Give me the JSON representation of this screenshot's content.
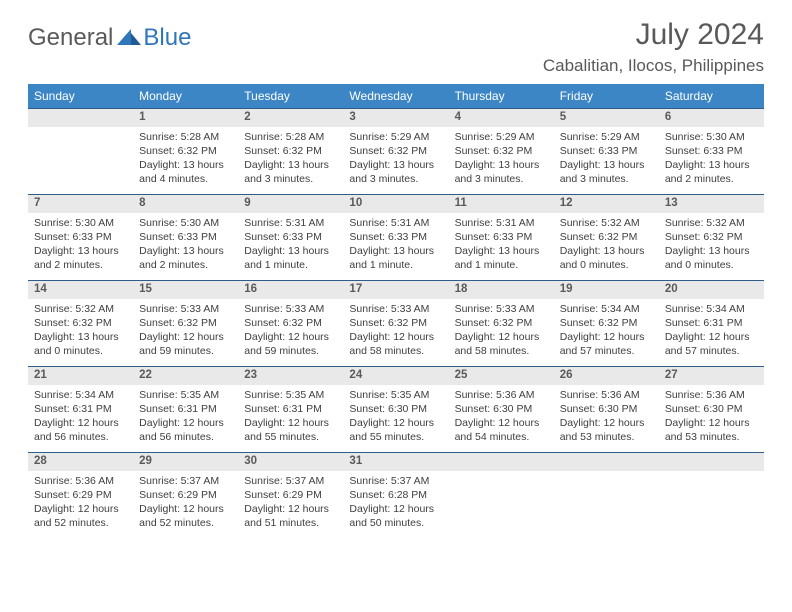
{
  "brand": {
    "word1": "General",
    "word2": "Blue"
  },
  "title": {
    "month": "July 2024",
    "location": "Cabalitian, Ilocos, Philippines"
  },
  "colors": {
    "header_bg": "#3d86c6",
    "daynum_bg": "#e9e9e9",
    "rule": "#2f5d8a",
    "text": "#3f3f3f",
    "muted": "#595959",
    "brand_blue": "#2f76ba"
  },
  "weekdays": [
    "Sunday",
    "Monday",
    "Tuesday",
    "Wednesday",
    "Thursday",
    "Friday",
    "Saturday"
  ],
  "weeks": [
    {
      "nums": [
        "",
        "1",
        "2",
        "3",
        "4",
        "5",
        "6"
      ],
      "cells": [
        null,
        {
          "sunrise": "Sunrise: 5:28 AM",
          "sunset": "Sunset: 6:32 PM",
          "daylight": "Daylight: 13 hours and 4 minutes."
        },
        {
          "sunrise": "Sunrise: 5:28 AM",
          "sunset": "Sunset: 6:32 PM",
          "daylight": "Daylight: 13 hours and 3 minutes."
        },
        {
          "sunrise": "Sunrise: 5:29 AM",
          "sunset": "Sunset: 6:32 PM",
          "daylight": "Daylight: 13 hours and 3 minutes."
        },
        {
          "sunrise": "Sunrise: 5:29 AM",
          "sunset": "Sunset: 6:32 PM",
          "daylight": "Daylight: 13 hours and 3 minutes."
        },
        {
          "sunrise": "Sunrise: 5:29 AM",
          "sunset": "Sunset: 6:33 PM",
          "daylight": "Daylight: 13 hours and 3 minutes."
        },
        {
          "sunrise": "Sunrise: 5:30 AM",
          "sunset": "Sunset: 6:33 PM",
          "daylight": "Daylight: 13 hours and 2 minutes."
        }
      ]
    },
    {
      "nums": [
        "7",
        "8",
        "9",
        "10",
        "11",
        "12",
        "13"
      ],
      "cells": [
        {
          "sunrise": "Sunrise: 5:30 AM",
          "sunset": "Sunset: 6:33 PM",
          "daylight": "Daylight: 13 hours and 2 minutes."
        },
        {
          "sunrise": "Sunrise: 5:30 AM",
          "sunset": "Sunset: 6:33 PM",
          "daylight": "Daylight: 13 hours and 2 minutes."
        },
        {
          "sunrise": "Sunrise: 5:31 AM",
          "sunset": "Sunset: 6:33 PM",
          "daylight": "Daylight: 13 hours and 1 minute."
        },
        {
          "sunrise": "Sunrise: 5:31 AM",
          "sunset": "Sunset: 6:33 PM",
          "daylight": "Daylight: 13 hours and 1 minute."
        },
        {
          "sunrise": "Sunrise: 5:31 AM",
          "sunset": "Sunset: 6:33 PM",
          "daylight": "Daylight: 13 hours and 1 minute."
        },
        {
          "sunrise": "Sunrise: 5:32 AM",
          "sunset": "Sunset: 6:32 PM",
          "daylight": "Daylight: 13 hours and 0 minutes."
        },
        {
          "sunrise": "Sunrise: 5:32 AM",
          "sunset": "Sunset: 6:32 PM",
          "daylight": "Daylight: 13 hours and 0 minutes."
        }
      ]
    },
    {
      "nums": [
        "14",
        "15",
        "16",
        "17",
        "18",
        "19",
        "20"
      ],
      "cells": [
        {
          "sunrise": "Sunrise: 5:32 AM",
          "sunset": "Sunset: 6:32 PM",
          "daylight": "Daylight: 13 hours and 0 minutes."
        },
        {
          "sunrise": "Sunrise: 5:33 AM",
          "sunset": "Sunset: 6:32 PM",
          "daylight": "Daylight: 12 hours and 59 minutes."
        },
        {
          "sunrise": "Sunrise: 5:33 AM",
          "sunset": "Sunset: 6:32 PM",
          "daylight": "Daylight: 12 hours and 59 minutes."
        },
        {
          "sunrise": "Sunrise: 5:33 AM",
          "sunset": "Sunset: 6:32 PM",
          "daylight": "Daylight: 12 hours and 58 minutes."
        },
        {
          "sunrise": "Sunrise: 5:33 AM",
          "sunset": "Sunset: 6:32 PM",
          "daylight": "Daylight: 12 hours and 58 minutes."
        },
        {
          "sunrise": "Sunrise: 5:34 AM",
          "sunset": "Sunset: 6:32 PM",
          "daylight": "Daylight: 12 hours and 57 minutes."
        },
        {
          "sunrise": "Sunrise: 5:34 AM",
          "sunset": "Sunset: 6:31 PM",
          "daylight": "Daylight: 12 hours and 57 minutes."
        }
      ]
    },
    {
      "nums": [
        "21",
        "22",
        "23",
        "24",
        "25",
        "26",
        "27"
      ],
      "cells": [
        {
          "sunrise": "Sunrise: 5:34 AM",
          "sunset": "Sunset: 6:31 PM",
          "daylight": "Daylight: 12 hours and 56 minutes."
        },
        {
          "sunrise": "Sunrise: 5:35 AM",
          "sunset": "Sunset: 6:31 PM",
          "daylight": "Daylight: 12 hours and 56 minutes."
        },
        {
          "sunrise": "Sunrise: 5:35 AM",
          "sunset": "Sunset: 6:31 PM",
          "daylight": "Daylight: 12 hours and 55 minutes."
        },
        {
          "sunrise": "Sunrise: 5:35 AM",
          "sunset": "Sunset: 6:30 PM",
          "daylight": "Daylight: 12 hours and 55 minutes."
        },
        {
          "sunrise": "Sunrise: 5:36 AM",
          "sunset": "Sunset: 6:30 PM",
          "daylight": "Daylight: 12 hours and 54 minutes."
        },
        {
          "sunrise": "Sunrise: 5:36 AM",
          "sunset": "Sunset: 6:30 PM",
          "daylight": "Daylight: 12 hours and 53 minutes."
        },
        {
          "sunrise": "Sunrise: 5:36 AM",
          "sunset": "Sunset: 6:30 PM",
          "daylight": "Daylight: 12 hours and 53 minutes."
        }
      ]
    },
    {
      "nums": [
        "28",
        "29",
        "30",
        "31",
        "",
        "",
        ""
      ],
      "cells": [
        {
          "sunrise": "Sunrise: 5:36 AM",
          "sunset": "Sunset: 6:29 PM",
          "daylight": "Daylight: 12 hours and 52 minutes."
        },
        {
          "sunrise": "Sunrise: 5:37 AM",
          "sunset": "Sunset: 6:29 PM",
          "daylight": "Daylight: 12 hours and 52 minutes."
        },
        {
          "sunrise": "Sunrise: 5:37 AM",
          "sunset": "Sunset: 6:29 PM",
          "daylight": "Daylight: 12 hours and 51 minutes."
        },
        {
          "sunrise": "Sunrise: 5:37 AM",
          "sunset": "Sunset: 6:28 PM",
          "daylight": "Daylight: 12 hours and 50 minutes."
        },
        null,
        null,
        null
      ]
    }
  ]
}
